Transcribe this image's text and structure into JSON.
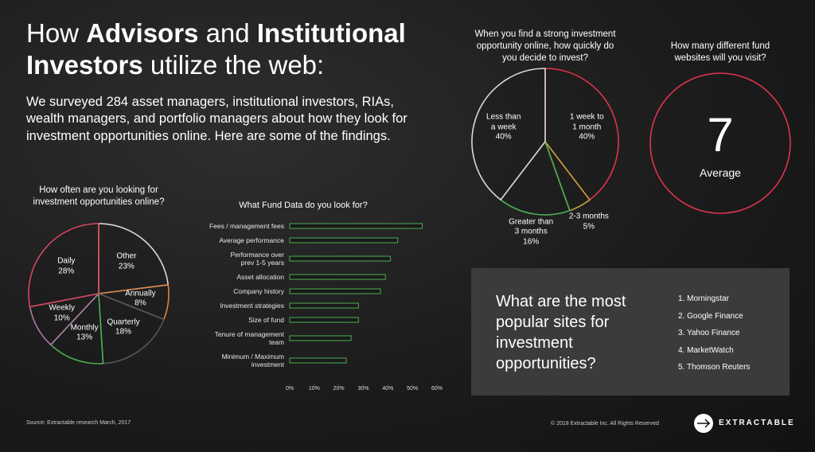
{
  "title_parts": [
    {
      "text": "How ",
      "bold": false
    },
    {
      "text": "Advisors",
      "bold": true
    },
    {
      "text": " and ",
      "bold": false
    },
    {
      "text": "Institutional Investors",
      "bold": true
    },
    {
      "text": " utilize the web:",
      "bold": false
    }
  ],
  "intro": "We surveyed 284 asset managers, institutional investors, RIAs, wealth managers, and portfolio managers about how they look for investment opportunities online.  Here are some of the findings.",
  "chart_data": [
    {
      "type": "pie",
      "title": "How often are you looking for\ninvestment opportunities online?",
      "categories": [
        "Other",
        "Annually",
        "Quarterly",
        "Monthly",
        "Weekly",
        "Daily"
      ],
      "values": [
        23,
        8,
        18,
        13,
        10,
        28
      ],
      "value_labels": [
        "23%",
        "8%",
        "18%",
        "13%",
        "10%",
        "28%"
      ],
      "colors": [
        "#d8d8d8",
        "#d9844a",
        "#555555",
        "#4caf50",
        "#b07aa8",
        "#d8465f"
      ]
    },
    {
      "type": "hbar",
      "title": "What Fund Data do you look for?",
      "categories": [
        "Fees / management fees",
        "Average performance",
        "Performance over\nprev 1-5 years",
        "Asset allocation",
        "Company history",
        "Investment strategies",
        "Size of fund",
        "Tenure of management\nteam",
        "Minimum / Maximum\ninvestment"
      ],
      "values": [
        54,
        44,
        41,
        39,
        37,
        28,
        28,
        25,
        23
      ],
      "color": "#4caf50",
      "xlim": [
        0,
        60
      ],
      "xticks": [
        {
          "value": 0,
          "label": "0%"
        },
        {
          "value": 10,
          "label": "10%"
        },
        {
          "value": 20,
          "label": "20%"
        },
        {
          "value": 30,
          "label": "30%"
        },
        {
          "value": 40,
          "label": "40%"
        },
        {
          "value": 50,
          "label": "50%"
        },
        {
          "value": 60,
          "label": "60%"
        }
      ]
    },
    {
      "type": "pie",
      "title": "When you find a strong investment\nopportunity online, how quickly do\nyou decide to invest?",
      "categories": [
        "1 week to\n1 month",
        "2-3 months",
        "Greater than\n3 months",
        "Less than\na week"
      ],
      "values": [
        40,
        5,
        16,
        40
      ],
      "value_labels": [
        "40%",
        "5%",
        "16%",
        "40%"
      ],
      "colors": [
        "#e0334d",
        "#c8a040",
        "#4caf50",
        "#d8d8d8"
      ]
    }
  ],
  "websites": {
    "question": "How many different fund\nwebsites will you visit?",
    "value": 7,
    "label": "Average",
    "color": "#e0334d"
  },
  "popular_sites": {
    "question": "What are the most popular sites for investment opportunities?",
    "items": [
      "1. Morningstar",
      "2. Google Finance",
      "3. Yahoo Finance",
      "4. MarketWatch",
      "5. Thomson Reuters"
    ]
  },
  "footer": {
    "source": "Source: Extractable research March, 2017",
    "copyright": "© 2018 Extractable Inc. All Rights Reserved",
    "logo": "EXTRACTABLE"
  }
}
